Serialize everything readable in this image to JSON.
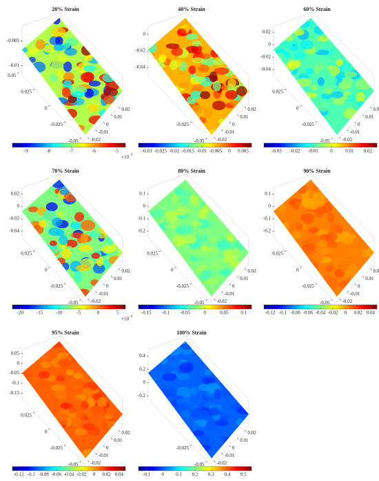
{
  "chart_data": [
    {
      "type": "surface",
      "title": "20% Strain",
      "zlim": [
        -0.012,
        -0.002
      ],
      "zticks": [
        -0.005,
        -0.01
      ],
      "ylim": [
        -0.055,
        0.045
      ],
      "yticks": [
        0.05,
        0.025,
        0,
        -0.025,
        -0.05
      ],
      "xlim": [
        -0.025,
        0.025
      ],
      "xticks": [
        0.02,
        0.01,
        0,
        -0.01,
        -0.02
      ],
      "clim": [
        -9.6,
        -4.6
      ],
      "cticks": [
        -9,
        -8,
        -7,
        -6,
        -5
      ],
      "exponent": "×10",
      "exponent_power": "−3"
    },
    {
      "type": "surface",
      "title": "40% Strain",
      "zlim": [
        -0.05,
        0.01
      ],
      "zticks": [
        0,
        -0.02,
        -0.04
      ],
      "ylim": [
        -0.055,
        0.045
      ],
      "yticks": [
        -0.025,
        -0.05
      ],
      "xlim": [
        -0.025,
        0.025
      ],
      "xticks": [
        0.02,
        0.01,
        0,
        -0.01,
        -0.02
      ],
      "clim": [
        -0.033,
        0.008
      ],
      "cticks": [
        -0.03,
        -0.025,
        -0.02,
        -0.015,
        -0.01,
        -0.005,
        0,
        0.005
      ]
    },
    {
      "type": "surface",
      "title": "60% Strain",
      "zlim": [
        -0.05,
        0.03
      ],
      "zticks": [
        0.02,
        0,
        -0.02,
        -0.04
      ],
      "ylim": [
        -0.055,
        0.045
      ],
      "yticks": [
        0.025,
        0,
        -0.025,
        -0.05
      ],
      "xlim": [
        -0.025,
        0.025
      ],
      "xticks": [
        0.02,
        0.01,
        0,
        -0.01,
        -0.02
      ],
      "clim": [
        -0.037,
        0.025
      ],
      "cticks": [
        -0.03,
        -0.02,
        -0.01,
        0,
        0.01,
        0.02
      ]
    },
    {
      "type": "surface",
      "title": "70% Strain",
      "zlim": [
        -0.05,
        0.03
      ],
      "zticks": [
        0.02,
        0,
        -0.02,
        -0.04
      ],
      "ylim": [
        -0.055,
        0.045
      ],
      "yticks": [
        0.025,
        0,
        -0.025,
        -0.05
      ],
      "xlim": [
        -0.025,
        0.025
      ],
      "xticks": [
        0.02,
        0.01,
        0,
        -0.01,
        -0.02
      ],
      "clim": [
        -22,
        7
      ],
      "cticks": [
        -20,
        -15,
        -10,
        -5,
        0,
        5
      ],
      "exponent": "×10",
      "exponent_power": "−3"
    },
    {
      "type": "surface",
      "title": "80% Strain",
      "zlim": [
        -0.25,
        0.15
      ],
      "zticks": [
        0.1,
        0,
        -0.1,
        -0.2
      ],
      "ylim": [
        -0.055,
        0.045
      ],
      "yticks": [
        0.025,
        0,
        -0.025,
        -0.05
      ],
      "xlim": [
        -0.025,
        0.025
      ],
      "xticks": [
        0.02,
        0.01,
        0,
        -0.01,
        -0.02
      ],
      "clim": [
        -0.17,
        0.12
      ],
      "cticks": [
        -0.15,
        -0.1,
        -0.05,
        0,
        0.05,
        0.1
      ]
    },
    {
      "type": "surface",
      "title": "90% Strain",
      "zlim": [
        -0.25,
        0.15
      ],
      "zticks": [
        0.1,
        0,
        -0.1,
        -0.2
      ],
      "ylim": [
        -0.055,
        0.045
      ],
      "yticks": [
        0.025,
        0,
        -0.025,
        -0.05
      ],
      "xlim": [
        -0.025,
        0.025
      ],
      "xticks": [
        0.02,
        0.01,
        0,
        -0.01,
        -0.02
      ],
      "clim": [
        -0.13,
        0.05
      ],
      "cticks": [
        -0.12,
        -0.1,
        -0.08,
        -0.06,
        -0.04,
        -0.02,
        0,
        0.02,
        0.04
      ]
    },
    {
      "type": "surface",
      "title": "95% Strain",
      "zlim": [
        -0.18,
        0.07
      ],
      "zticks": [
        0.05,
        0,
        -0.05,
        -0.1,
        -0.15
      ],
      "ylim": [
        -0.055,
        0.045
      ],
      "yticks": [
        0.025,
        0,
        -0.025,
        -0.05
      ],
      "xlim": [
        -0.025,
        0.025
      ],
      "xticks": [
        0.02,
        0.01,
        0,
        -0.01,
        -0.02
      ],
      "clim": [
        -0.13,
        0.05
      ],
      "cticks": [
        -0.12,
        -0.1,
        -0.08,
        -0.06,
        -0.04,
        -0.02,
        0,
        0.02,
        0.04
      ]
    },
    {
      "type": "surface",
      "title": "100% Strain",
      "zlim": [
        -0.25,
        0.5
      ],
      "zticks": [
        0.4,
        0.2,
        0,
        -0.2
      ],
      "ylim": [
        -0.055,
        0.045
      ],
      "yticks": [
        -0.025,
        -0.05
      ],
      "xlim": [
        -0.025,
        0.025
      ],
      "xticks": [
        0.02,
        0.01,
        0,
        -0.01,
        -0.02
      ],
      "clim": [
        -0.15,
        0.55
      ],
      "cticks": [
        -0.1,
        0,
        0.1,
        0.2,
        0.3,
        0.4,
        0.5
      ]
    }
  ]
}
